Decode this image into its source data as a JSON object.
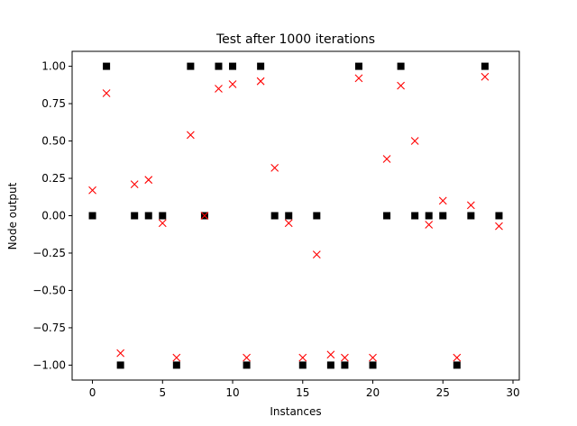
{
  "chart_data": {
    "type": "scatter",
    "title": "Test after 1000 iterations",
    "xlabel": "Instances",
    "ylabel": "Node output",
    "xlim": [
      -1.45,
      30.45
    ],
    "ylim": [
      -1.1,
      1.1
    ],
    "xticks": [
      0,
      5,
      10,
      15,
      20,
      25,
      30
    ],
    "yticks": [
      -1.0,
      -0.75,
      -0.5,
      -0.25,
      0.0,
      0.25,
      0.5,
      0.75,
      1.0
    ],
    "ytick_labels": [
      "−1.00",
      "−0.75",
      "−0.50",
      "−0.25",
      "0.00",
      "0.25",
      "0.50",
      "0.75",
      "1.00"
    ],
    "grid": false,
    "series": [
      {
        "marker": "square",
        "color": "#000000",
        "x": [
          0,
          1,
          2,
          3,
          4,
          5,
          6,
          7,
          8,
          9,
          10,
          11,
          12,
          13,
          14,
          15,
          16,
          17,
          18,
          19,
          20,
          21,
          22,
          23,
          24,
          25,
          26,
          27,
          28,
          29
        ],
        "values": [
          0,
          1,
          -1,
          0,
          0,
          0,
          -1,
          1,
          0,
          1,
          1,
          -1,
          1,
          0,
          0,
          -1,
          0,
          -1,
          -1,
          1,
          -1,
          0,
          1,
          0,
          0,
          0,
          -1,
          0,
          1,
          0
        ]
      },
      {
        "marker": "x",
        "color": "#ff0000",
        "x": [
          0,
          1,
          2,
          3,
          4,
          5,
          6,
          7,
          8,
          9,
          10,
          11,
          12,
          13,
          14,
          15,
          16,
          17,
          18,
          19,
          20,
          21,
          22,
          23,
          24,
          25,
          26,
          27,
          28,
          29
        ],
        "values": [
          0.17,
          0.82,
          -0.92,
          0.21,
          0.24,
          -0.05,
          -0.95,
          0.54,
          0.0,
          0.85,
          0.88,
          -0.95,
          0.9,
          0.32,
          -0.05,
          -0.95,
          -0.26,
          -0.93,
          -0.95,
          0.92,
          -0.95,
          0.38,
          0.87,
          0.5,
          -0.06,
          0.1,
          -0.95,
          0.07,
          0.93,
          -0.07
        ]
      }
    ]
  }
}
